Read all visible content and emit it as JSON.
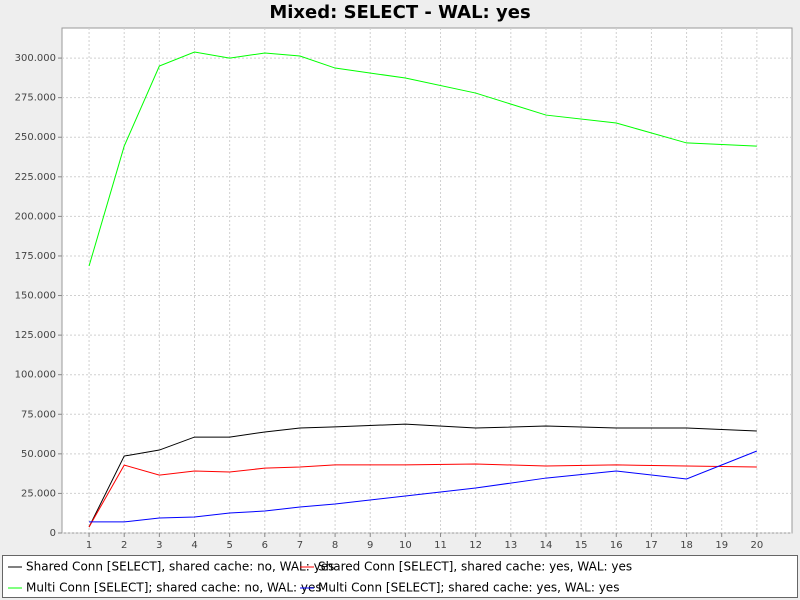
{
  "chart_data": {
    "type": "line",
    "title": "Mixed: SELECT - WAL: yes",
    "x": [
      1,
      2,
      3,
      4,
      5,
      6,
      7,
      8,
      10,
      12,
      14,
      16,
      18,
      20
    ],
    "series": [
      {
        "name": "Shared Conn [SELECT], shared cache: no, WAL: yes",
        "color": "#000000",
        "values": [
          3800,
          48600,
          52400,
          60600,
          60600,
          63800,
          66300,
          67000,
          68800,
          66300,
          67600,
          66300,
          66300,
          64400
        ]
      },
      {
        "name": "Shared Conn [SELECT], shared cache: yes, WAL: yes",
        "color": "#ff0000",
        "values": [
          3800,
          42900,
          36600,
          39200,
          38500,
          41000,
          41700,
          43000,
          43000,
          43600,
          42300,
          43000,
          42300,
          41700
        ]
      },
      {
        "name": "Multi Conn [SELECT]; shared cache: no, WAL: yes",
        "color": "#00ff00",
        "values": [
          168650,
          244400,
          295000,
          303800,
          300000,
          303200,
          301300,
          293700,
          287400,
          277900,
          264000,
          259000,
          246400,
          244400
        ]
      },
      {
        "name": "Multi Conn [SELECT]; shared cache: yes, WAL: yes",
        "color": "#0000ff",
        "values": [
          7000,
          7000,
          9500,
          10100,
          12600,
          13900,
          16400,
          18300,
          23400,
          28400,
          34700,
          39200,
          34100,
          51800
        ]
      }
    ],
    "xlim": [
      0.23,
      21
    ],
    "xticks": [
      1,
      2,
      3,
      4,
      5,
      6,
      7,
      8,
      9,
      10,
      11,
      12,
      13,
      14,
      15,
      16,
      17,
      18,
      19,
      20
    ],
    "ylim": [
      0,
      319000
    ],
    "yticks": [
      0,
      {
        "value": 25000,
        "label": "25.000"
      },
      {
        "value": 50000,
        "label": "50.000"
      },
      {
        "value": 75000,
        "label": "75.000"
      },
      {
        "value": 100000,
        "label": "100.000"
      },
      {
        "value": 125000,
        "label": "125.000"
      },
      {
        "value": 150000,
        "label": "150.000"
      },
      {
        "value": 175000,
        "label": "175.000"
      },
      {
        "value": 200000,
        "label": "200.000"
      },
      {
        "value": 225000,
        "label": "225.000"
      },
      {
        "value": 250000,
        "label": "250.000"
      },
      {
        "value": 275000,
        "label": "275.000"
      },
      {
        "value": 300000,
        "label": "300.000"
      }
    ],
    "grid": true
  }
}
